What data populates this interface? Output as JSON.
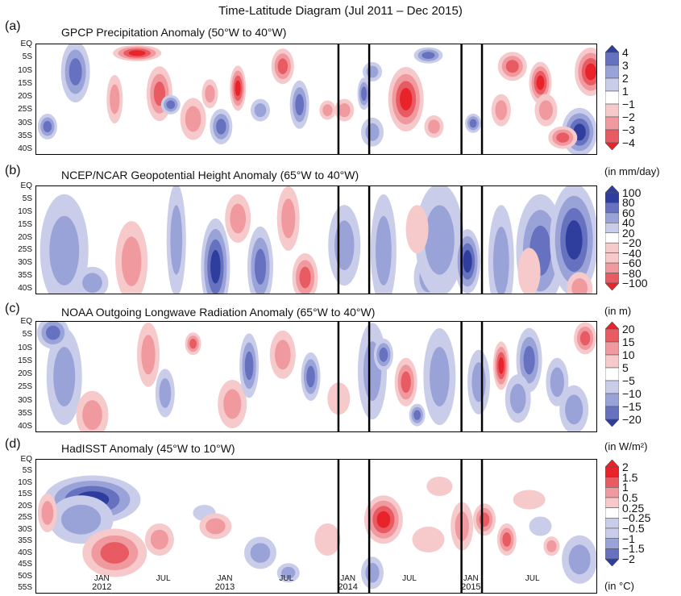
{
  "title": "Time-Latitude Diagram (Jul 2011 – Dec 2015)",
  "colors": {
    "red": "#e8232a",
    "blue": "#2f3d9c"
  },
  "x_ticks": [
    {
      "month": "JAN",
      "year": "2012"
    },
    {
      "month": "JUL",
      "year": ""
    },
    {
      "month": "JAN",
      "year": "2013"
    },
    {
      "month": "JUL",
      "year": ""
    },
    {
      "month": "JAN",
      "year": "2014"
    },
    {
      "month": "JUL",
      "year": ""
    },
    {
      "month": "JAN",
      "year": "2015"
    },
    {
      "month": "JUL",
      "year": ""
    }
  ],
  "chart_data": [
    {
      "type": "heatmap",
      "panel": "(a)",
      "title": "GPCP Precipitation Anomaly (50°W to 40°W)",
      "ylabels": [
        "EQ",
        "5S",
        "10S",
        "15S",
        "20S",
        "25S",
        "30S",
        "35S",
        "40S"
      ],
      "colorbar": {
        "labels": [
          "4",
          "3",
          "2",
          "1",
          "−1",
          "−2",
          "−3",
          "−4"
        ],
        "high": "blue",
        "unit": "(in mm/day)"
      },
      "vertical_lines": [
        "2013-12",
        "2014-03",
        "2014-12",
        "2015-02"
      ]
    },
    {
      "type": "heatmap",
      "panel": "(b)",
      "title": "NCEP/NCAR Geopotential Height Anomaly (65°W to 40°W)",
      "ylabels": [
        "EQ",
        "5S",
        "10S",
        "15S",
        "20S",
        "25S",
        "30S",
        "35S",
        "40S"
      ],
      "colorbar": {
        "labels": [
          "100",
          "80",
          "60",
          "40",
          "20",
          "−20",
          "−40",
          "−60",
          "−80",
          "−100"
        ],
        "high": "blue",
        "unit": "(in m)"
      },
      "vertical_lines": [
        "2013-12",
        "2014-03",
        "2014-12",
        "2015-02"
      ]
    },
    {
      "type": "heatmap",
      "panel": "(c)",
      "title": "NOAA Outgoing Longwave Radiation Anomaly (65°W to 40°W)",
      "ylabels": [
        "EQ",
        "5S",
        "10S",
        "15S",
        "20S",
        "25S",
        "30S",
        "35S",
        "40S"
      ],
      "colorbar": {
        "labels": [
          "20",
          "15",
          "10",
          "5",
          "−5",
          "−10",
          "−15",
          "−20"
        ],
        "high": "red",
        "unit": "(in W/m²)"
      },
      "vertical_lines": [
        "2013-12",
        "2014-03",
        "2014-12",
        "2015-02"
      ]
    },
    {
      "type": "heatmap",
      "panel": "(d)",
      "title": "HadISST Anomaly (45°W to 10°W)",
      "ylabels": [
        "EQ",
        "5S",
        "10S",
        "15S",
        "20S",
        "25S",
        "30S",
        "35S",
        "40S",
        "45S",
        "50S",
        "55S"
      ],
      "colorbar": {
        "labels": [
          "2",
          "1.5",
          "1",
          "0.5",
          "0.25",
          "−0.25",
          "−0.5",
          "−1",
          "−1.5",
          "−2"
        ],
        "high": "red",
        "unit": "(in °C)"
      },
      "vertical_lines": [
        "2013-12",
        "2014-03",
        "2014-12",
        "2015-02"
      ]
    }
  ]
}
